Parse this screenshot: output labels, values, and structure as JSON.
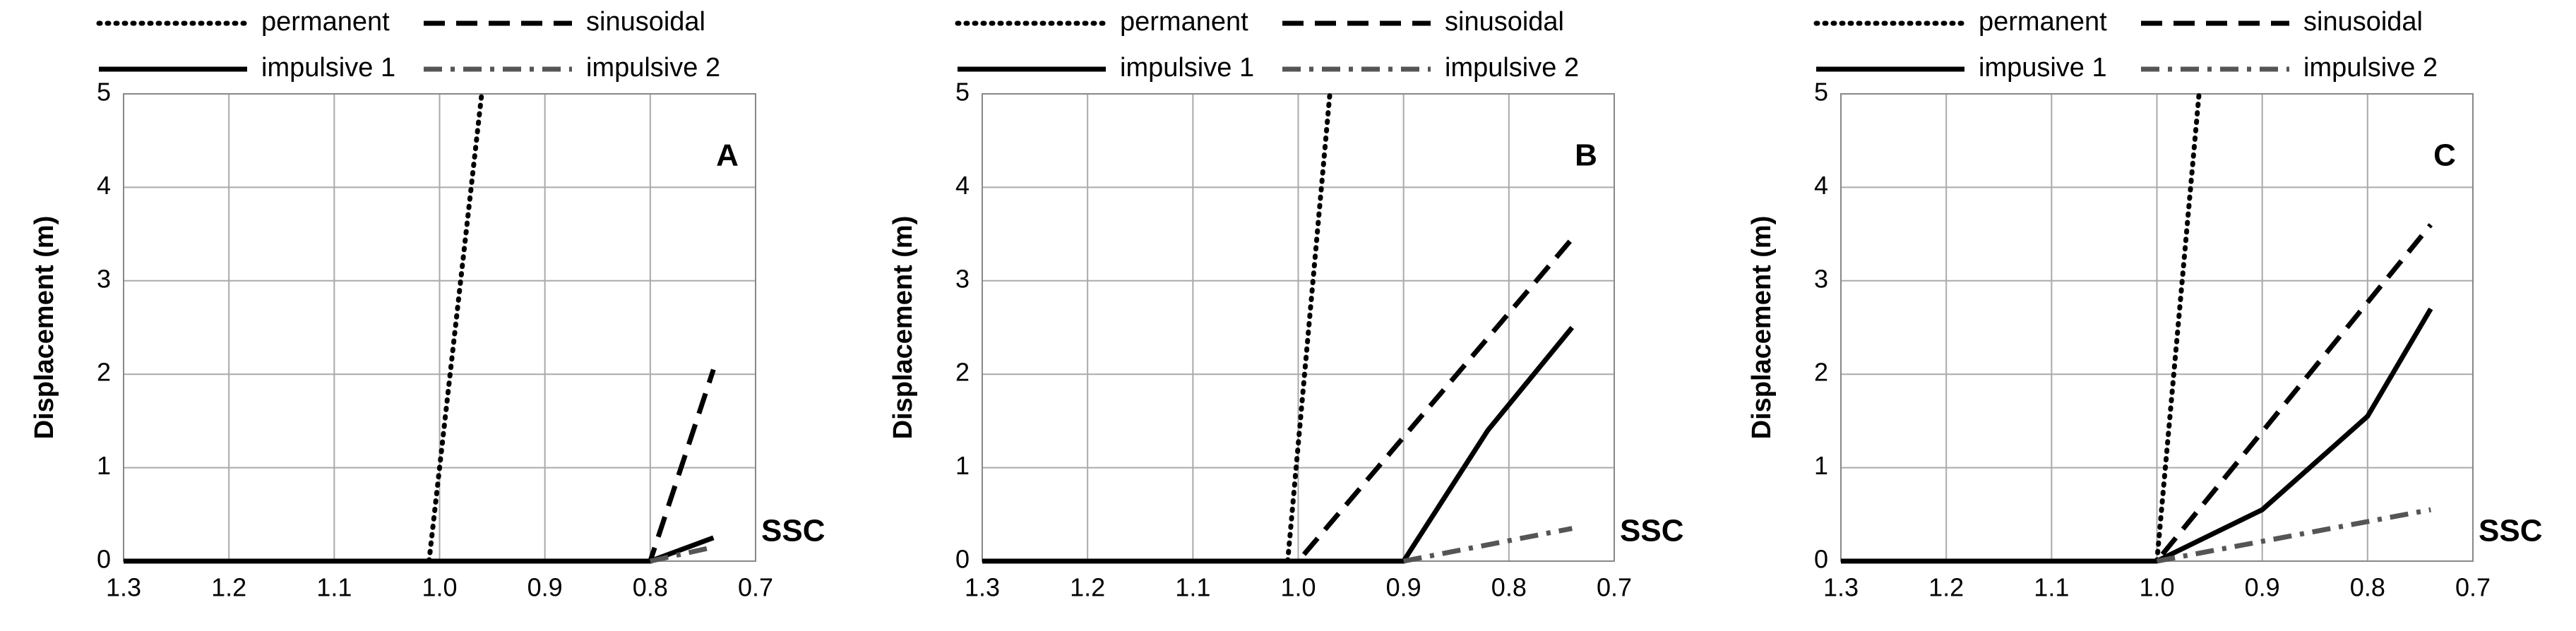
{
  "chart_data": [
    {
      "type": "line",
      "ylabel": "Displacement (m)",
      "xlim": [
        1.3,
        0.7
      ],
      "ylim": [
        0,
        5
      ],
      "xticks": [
        1.3,
        1.2,
        1.1,
        {
          "value": 1,
          "label": "1.0"
        },
        0.9,
        0.8,
        0.7
      ],
      "yticks": [
        0,
        1,
        2,
        3,
        4,
        5
      ],
      "grid": true,
      "annotations": [
        "A",
        "SSC"
      ],
      "series": [
        {
          "name": "permanent",
          "color": "#000000",
          "style": "dotted",
          "x": [
            1.01,
            0.96
          ],
          "values": [
            0,
            5
          ]
        },
        {
          "name": "sinusoidal",
          "color": "#000000",
          "style": "dashed",
          "x": [
            1.3,
            0.8,
            0.74
          ],
          "values": [
            0,
            0,
            2.05
          ]
        },
        {
          "name": "impulsive 1",
          "color": "#000000",
          "style": "solid",
          "x": [
            1.3,
            0.8,
            0.74
          ],
          "values": [
            0,
            0,
            0.25
          ]
        },
        {
          "name": "impulsive 2",
          "color": "#555555",
          "style": "dashdot",
          "x": [
            0.8,
            0.74
          ],
          "values": [
            0,
            0.15
          ]
        }
      ]
    },
    {
      "type": "line",
      "ylabel": "Displacement (m)",
      "xlim": [
        1.3,
        0.7
      ],
      "ylim": [
        0,
        5
      ],
      "xticks": [
        1.3,
        1.2,
        1.1,
        {
          "value": 1,
          "label": "1.0"
        },
        0.9,
        0.8,
        0.7
      ],
      "yticks": [
        0,
        1,
        2,
        3,
        4,
        5
      ],
      "grid": true,
      "annotations": [
        "B",
        "SSC"
      ],
      "series": [
        {
          "name": "permanent",
          "color": "#000000",
          "style": "dotted",
          "x": [
            1.01,
            0.97
          ],
          "values": [
            0,
            5
          ]
        },
        {
          "name": "sinusoidal",
          "color": "#000000",
          "style": "dashed",
          "x": [
            1.3,
            1.0,
            0.74
          ],
          "values": [
            0,
            0,
            3.45
          ]
        },
        {
          "name": "impulsive 1",
          "color": "#000000",
          "style": "solid",
          "x": [
            1.3,
            0.9,
            0.82,
            0.74
          ],
          "values": [
            0,
            0,
            1.4,
            2.5
          ]
        },
        {
          "name": "impulsive 2",
          "color": "#555555",
          "style": "dashdot",
          "x": [
            0.9,
            0.74
          ],
          "values": [
            0,
            0.35
          ]
        }
      ]
    },
    {
      "type": "line",
      "ylabel": "Displacement (m)",
      "xlim": [
        1.3,
        0.7
      ],
      "ylim": [
        0,
        5
      ],
      "xticks": [
        1.3,
        1.2,
        1.1,
        {
          "value": 1,
          "label": "1.0"
        },
        0.9,
        0.8,
        0.7
      ],
      "yticks": [
        0,
        1,
        2,
        3,
        4,
        5
      ],
      "grid": true,
      "annotations": [
        "C",
        "SSC"
      ],
      "series": [
        {
          "name": "permanent",
          "color": "#000000",
          "style": "dotted",
          "x": [
            1.0,
            0.96
          ],
          "values": [
            0,
            5
          ]
        },
        {
          "name": "sinusoidal",
          "color": "#000000",
          "style": "dashed",
          "x": [
            1.3,
            1.0,
            0.74
          ],
          "values": [
            0,
            0,
            3.6
          ]
        },
        {
          "name": "impusive 1",
          "color": "#000000",
          "style": "solid",
          "x": [
            1.3,
            1.0,
            0.9,
            0.8,
            0.74
          ],
          "values": [
            0,
            0,
            0.55,
            1.55,
            2.7
          ]
        },
        {
          "name": "impulsive 2",
          "color": "#555555",
          "style": "dashdot",
          "x": [
            1.0,
            0.74
          ],
          "values": [
            0,
            0.55
          ]
        }
      ]
    }
  ]
}
